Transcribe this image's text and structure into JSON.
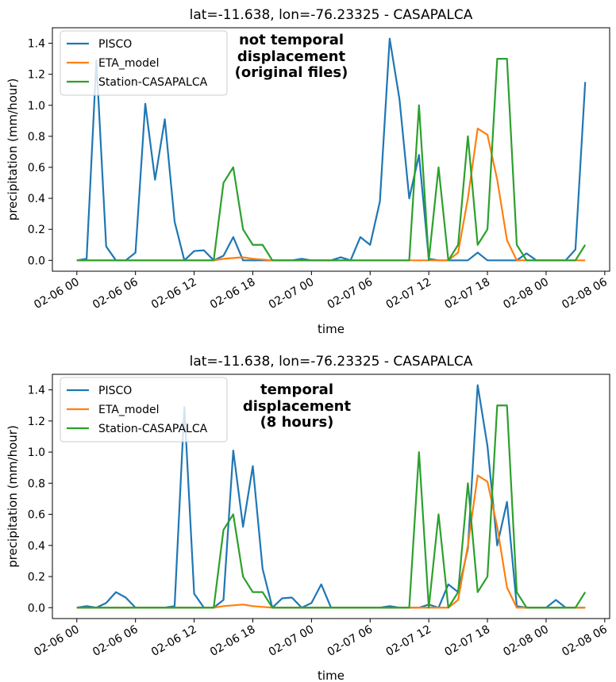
{
  "figure": {
    "panels": [
      {
        "title": "lat=-11.638, lon=-76.23325 - CASAPALCA",
        "annotation": [
          "not temporal",
          "displacement",
          "(original files)"
        ]
      },
      {
        "title": "lat=-11.638, lon=-76.23325 - CASAPALCA",
        "annotation": [
          "temporal",
          "displacement",
          "(8 hours)"
        ]
      }
    ],
    "colors": {
      "PISCO": "#1f77b4",
      "ETA_model": "#ff7f0e",
      "Station-CASAPALCA": "#2ca02c"
    }
  },
  "chart_data": [
    {
      "type": "line",
      "title": "lat=-11.638, lon=-76.23325 - CASAPALCA",
      "xlabel": "time",
      "ylabel": "precipitation (mm/hour)",
      "x_unit": "hours since 02-06 00",
      "xlim": [
        -2.5,
        54.5
      ],
      "ylim": [
        -0.07,
        1.5
      ],
      "x_ticks": [
        0,
        6,
        12,
        18,
        24,
        30,
        36,
        42,
        48,
        54
      ],
      "x_tick_labels": [
        "02-06 00",
        "02-06 06",
        "02-06 12",
        "02-06 18",
        "02-07 00",
        "02-07 06",
        "02-07 12",
        "02-07 18",
        "02-08 00",
        "02-08 06"
      ],
      "y_ticks": [
        0.0,
        0.2,
        0.4,
        0.6,
        0.8,
        1.0,
        1.2,
        1.4
      ],
      "y_tick_labels": [
        "0.0",
        "0.2",
        "0.4",
        "0.6",
        "0.8",
        "1.0",
        "1.2",
        "1.4"
      ],
      "legend_position": "top-left",
      "series": [
        {
          "name": "PISCO",
          "x": [
            0,
            1,
            2,
            3,
            4,
            5,
            6,
            7,
            8,
            9,
            10,
            11,
            12,
            13,
            14,
            15,
            16,
            17,
            18,
            19,
            20,
            21,
            22,
            23,
            24,
            25,
            26,
            27,
            28,
            29,
            30,
            31,
            32,
            33,
            34,
            35,
            36,
            37,
            38,
            39,
            40,
            41,
            42,
            43,
            44,
            45,
            46,
            47,
            48,
            49,
            50,
            51,
            52
          ],
          "y": [
            0.0,
            0.01,
            1.29,
            0.09,
            0.0,
            0.0,
            0.05,
            1.01,
            0.52,
            0.91,
            0.25,
            0.0,
            0.06,
            0.065,
            0.0,
            0.03,
            0.15,
            0.0,
            0.0,
            0.0,
            0.0,
            0.0,
            0.0,
            0.01,
            0.0,
            0.0,
            0.0,
            0.02,
            0.0,
            0.15,
            0.1,
            0.38,
            1.43,
            1.04,
            0.4,
            0.68,
            0.01,
            0.0,
            0.0,
            0.0,
            0.0,
            0.05,
            0.0,
            0.0,
            0.0,
            0.0,
            0.045,
            0.0,
            0.0,
            0.0,
            0.0,
            0.07,
            1.15
          ]
        },
        {
          "name": "ETA_model",
          "x": [
            0,
            1,
            2,
            3,
            4,
            5,
            6,
            7,
            8,
            9,
            10,
            11,
            12,
            13,
            14,
            15,
            16,
            17,
            18,
            19,
            20,
            21,
            22,
            23,
            24,
            25,
            26,
            27,
            28,
            29,
            30,
            31,
            32,
            33,
            34,
            35,
            36,
            37,
            38,
            39,
            40,
            41,
            42,
            43,
            44,
            45,
            46,
            47,
            48,
            49,
            50,
            51,
            52
          ],
          "y": [
            0.0,
            0.0,
            0.0,
            0.0,
            0.0,
            0.0,
            0.0,
            0.0,
            0.0,
            0.0,
            0.0,
            0.0,
            0.0,
            0.0,
            0.0,
            0.01,
            0.015,
            0.02,
            0.01,
            0.005,
            0.0,
            0.0,
            0.0,
            0.0,
            0.0,
            0.0,
            0.0,
            0.0,
            0.0,
            0.0,
            0.0,
            0.0,
            0.0,
            0.0,
            0.0,
            0.0,
            0.0,
            0.0,
            0.0,
            0.05,
            0.4,
            0.85,
            0.81,
            0.52,
            0.13,
            0.0,
            0.0,
            0.0,
            0.0,
            0.0,
            0.0,
            0.0,
            0.0
          ]
        },
        {
          "name": "Station-CASAPALCA",
          "x": [
            0,
            1,
            2,
            3,
            4,
            5,
            6,
            7,
            8,
            9,
            10,
            11,
            12,
            13,
            14,
            15,
            16,
            17,
            18,
            19,
            20,
            21,
            22,
            23,
            24,
            25,
            26,
            27,
            28,
            29,
            30,
            31,
            32,
            33,
            34,
            35,
            36,
            37,
            38,
            39,
            40,
            41,
            42,
            43,
            44,
            45,
            46,
            47,
            48,
            49,
            50,
            51,
            52
          ],
          "y": [
            0.0,
            0.0,
            0.0,
            0.0,
            0.0,
            0.0,
            0.0,
            0.0,
            0.0,
            0.0,
            0.0,
            0.0,
            0.0,
            0.0,
            0.0,
            0.5,
            0.6,
            0.2,
            0.1,
            0.1,
            0.0,
            0.0,
            0.0,
            0.0,
            0.0,
            0.0,
            0.0,
            0.0,
            0.0,
            0.0,
            0.0,
            0.0,
            0.0,
            0.0,
            0.0,
            1.0,
            0.0,
            0.6,
            0.0,
            0.1,
            0.8,
            0.1,
            0.2,
            1.3,
            1.3,
            0.1,
            0.0,
            0.0,
            0.0,
            0.0,
            0.0,
            0.0,
            0.1
          ]
        }
      ]
    },
    {
      "type": "line",
      "title": "lat=-11.638, lon=-76.23325 - CASAPALCA",
      "xlabel": "time",
      "ylabel": "precipitation (mm/hour)",
      "x_unit": "hours since 02-06 00",
      "xlim": [
        -2.5,
        54.5
      ],
      "ylim": [
        -0.07,
        1.5
      ],
      "x_ticks": [
        0,
        6,
        12,
        18,
        24,
        30,
        36,
        42,
        48,
        54
      ],
      "x_tick_labels": [
        "02-06 00",
        "02-06 06",
        "02-06 12",
        "02-06 18",
        "02-07 00",
        "02-07 06",
        "02-07 12",
        "02-07 18",
        "02-08 00",
        "02-08 06"
      ],
      "y_ticks": [
        0.0,
        0.2,
        0.4,
        0.6,
        0.8,
        1.0,
        1.2,
        1.4
      ],
      "y_tick_labels": [
        "0.0",
        "0.2",
        "0.4",
        "0.6",
        "0.8",
        "1.0",
        "1.2",
        "1.4"
      ],
      "legend_position": "top-left",
      "series": [
        {
          "name": "PISCO",
          "x": [
            0,
            1,
            2,
            3,
            4,
            5,
            6,
            7,
            8,
            9,
            10,
            11,
            12,
            13,
            14,
            15,
            16,
            17,
            18,
            19,
            20,
            21,
            22,
            23,
            24,
            25,
            26,
            27,
            28,
            29,
            30,
            31,
            32,
            33,
            34,
            35,
            36,
            37,
            38,
            39,
            40,
            41,
            42,
            43,
            44,
            45,
            46,
            47,
            48,
            49,
            50,
            51,
            52
          ],
          "y": [
            0.0,
            0.01,
            0.0,
            0.03,
            0.1,
            0.065,
            0.0,
            0.0,
            0.0,
            0.0,
            0.01,
            1.29,
            0.09,
            0.0,
            0.0,
            0.05,
            1.01,
            0.52,
            0.91,
            0.25,
            0.0,
            0.06,
            0.065,
            0.0,
            0.03,
            0.15,
            0.0,
            0.0,
            0.0,
            0.0,
            0.0,
            0.0,
            0.01,
            0.0,
            0.0,
            0.0,
            0.02,
            0.0,
            0.15,
            0.1,
            0.38,
            1.43,
            1.04,
            0.4,
            0.68,
            0.01,
            0.0,
            0.0,
            0.0,
            0.05,
            0.0,
            0.0,
            0.0
          ]
        },
        {
          "name": "ETA_model",
          "x": [
            0,
            1,
            2,
            3,
            4,
            5,
            6,
            7,
            8,
            9,
            10,
            11,
            12,
            13,
            14,
            15,
            16,
            17,
            18,
            19,
            20,
            21,
            22,
            23,
            24,
            25,
            26,
            27,
            28,
            29,
            30,
            31,
            32,
            33,
            34,
            35,
            36,
            37,
            38,
            39,
            40,
            41,
            42,
            43,
            44,
            45,
            46,
            47,
            48,
            49,
            50,
            51,
            52
          ],
          "y": [
            0.0,
            0.0,
            0.0,
            0.0,
            0.0,
            0.0,
            0.0,
            0.0,
            0.0,
            0.0,
            0.0,
            0.0,
            0.0,
            0.0,
            0.0,
            0.01,
            0.015,
            0.02,
            0.01,
            0.005,
            0.0,
            0.0,
            0.0,
            0.0,
            0.0,
            0.0,
            0.0,
            0.0,
            0.0,
            0.0,
            0.0,
            0.0,
            0.0,
            0.0,
            0.0,
            0.0,
            0.0,
            0.0,
            0.0,
            0.05,
            0.4,
            0.85,
            0.81,
            0.52,
            0.13,
            0.0,
            0.0,
            0.0,
            0.0,
            0.0,
            0.0,
            0.0,
            0.0
          ]
        },
        {
          "name": "Station-CASAPALCA",
          "x": [
            0,
            1,
            2,
            3,
            4,
            5,
            6,
            7,
            8,
            9,
            10,
            11,
            12,
            13,
            14,
            15,
            16,
            17,
            18,
            19,
            20,
            21,
            22,
            23,
            24,
            25,
            26,
            27,
            28,
            29,
            30,
            31,
            32,
            33,
            34,
            35,
            36,
            37,
            38,
            39,
            40,
            41,
            42,
            43,
            44,
            45,
            46,
            47,
            48,
            49,
            50,
            51,
            52
          ],
          "y": [
            0.0,
            0.0,
            0.0,
            0.0,
            0.0,
            0.0,
            0.0,
            0.0,
            0.0,
            0.0,
            0.0,
            0.0,
            0.0,
            0.0,
            0.0,
            0.5,
            0.6,
            0.2,
            0.1,
            0.1,
            0.0,
            0.0,
            0.0,
            0.0,
            0.0,
            0.0,
            0.0,
            0.0,
            0.0,
            0.0,
            0.0,
            0.0,
            0.0,
            0.0,
            0.0,
            1.0,
            0.0,
            0.6,
            0.0,
            0.1,
            0.8,
            0.1,
            0.2,
            1.3,
            1.3,
            0.1,
            0.0,
            0.0,
            0.0,
            0.0,
            0.0,
            0.0,
            0.1
          ]
        }
      ]
    }
  ]
}
